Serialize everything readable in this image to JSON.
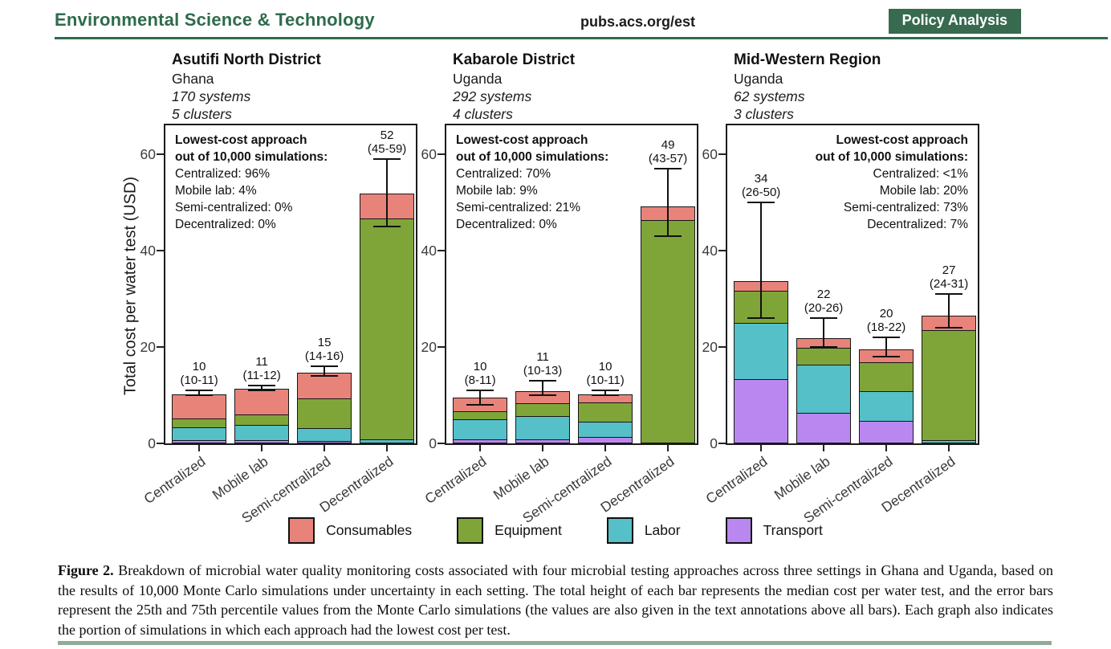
{
  "header": {
    "journal": "Environmental Science & Technology",
    "site": "pubs.acs.org/est",
    "badge": "Policy Analysis"
  },
  "axis": {
    "y_label": "Total cost per water test (USD)",
    "y_ticks": [
      0,
      20,
      40,
      60
    ],
    "y_max": 66
  },
  "legend": [
    {
      "label": "Consumables",
      "color": "#E8837A"
    },
    {
      "label": "Equipment",
      "color": "#7FA539"
    },
    {
      "label": "Labor",
      "color": "#55C0C8"
    },
    {
      "label": "Transport",
      "color": "#BA87F0"
    }
  ],
  "chart_data": [
    {
      "type": "bar",
      "title": "Asutifi North District",
      "subtitle": "Ghana",
      "systems": "170 systems",
      "clusters": "5 clusters",
      "annotation": {
        "heading_1": "Lowest-cost approach",
        "heading_2": "out of 10,000 simulations:",
        "lines": [
          "Centralized: 96%",
          "Mobile lab: 4%",
          "Semi-centralized: 0%",
          "Decentralized: 0%"
        ],
        "align": "left"
      },
      "categories": [
        "Centralized",
        "Mobile lab",
        "Semi-centralized",
        "Decentralized"
      ],
      "series": [
        {
          "name": "Transport",
          "color": "#BA87F0",
          "values": [
            0.7,
            0.8,
            0.6,
            0
          ]
        },
        {
          "name": "Labor",
          "color": "#55C0C8",
          "values": [
            2.7,
            3.2,
            2.7,
            1.0
          ]
        },
        {
          "name": "Equipment",
          "color": "#7FA539",
          "values": [
            1.9,
            2.1,
            6.1,
            45.8
          ]
        },
        {
          "name": "Consumables",
          "color": "#E8837A",
          "values": [
            4.9,
            5.2,
            5.3,
            5.0
          ]
        }
      ],
      "medians": [
        10,
        11,
        15,
        52
      ],
      "iqr_low": [
        10,
        11,
        14,
        45
      ],
      "iqr_high": [
        11,
        12,
        16,
        59
      ],
      "bar_labels": [
        "10",
        "11",
        "15",
        "52"
      ],
      "iqr_labels": [
        "(10-11)",
        "(11-12)",
        "(14-16)",
        "(45-59)"
      ],
      "ylim": [
        0,
        66
      ]
    },
    {
      "type": "bar",
      "title": "Kabarole District",
      "subtitle": "Uganda",
      "systems": "292 systems",
      "clusters": "4 clusters",
      "annotation": {
        "heading_1": "Lowest-cost approach",
        "heading_2": "out of 10,000 simulations:",
        "lines": [
          "Centralized: 70%",
          "Mobile lab: 9%",
          "Semi-centralized: 21%",
          "Decentralized: 0%"
        ],
        "align": "left"
      },
      "categories": [
        "Centralized",
        "Mobile lab",
        "Semi-centralized",
        "Decentralized"
      ],
      "series": [
        {
          "name": "Transport",
          "color": "#BA87F0",
          "values": [
            0.9,
            1.0,
            1.4,
            0
          ]
        },
        {
          "name": "Labor",
          "color": "#55C0C8",
          "values": [
            4.2,
            4.8,
            3.2,
            0
          ]
        },
        {
          "name": "Equipment",
          "color": "#7FA539",
          "values": [
            1.6,
            2.7,
            4.0,
            46.5
          ]
        },
        {
          "name": "Consumables",
          "color": "#E8837A",
          "values": [
            2.8,
            2.4,
            1.6,
            2.7
          ]
        }
      ],
      "medians": [
        10,
        11,
        10,
        49
      ],
      "iqr_low": [
        8,
        10,
        10,
        43
      ],
      "iqr_high": [
        11,
        13,
        11,
        57
      ],
      "bar_labels": [
        "10",
        "11",
        "10",
        "49"
      ],
      "iqr_labels": [
        "(8-11)",
        "(10-13)",
        "(10-11)",
        "(43-57)"
      ],
      "ylim": [
        0,
        66
      ]
    },
    {
      "type": "bar",
      "title": "Mid-Western Region",
      "subtitle": "Uganda",
      "systems": "62 systems",
      "clusters": "3 clusters",
      "annotation": {
        "heading_1": "Lowest-cost approach",
        "heading_2": "out of 10,000 simulations:",
        "lines": [
          "Centralized: <1%",
          "Mobile lab: 20%",
          "Semi-centralized: 73%",
          "Decentralized: 7%"
        ],
        "align": "right"
      },
      "categories": [
        "Centralized",
        "Mobile lab",
        "Semi-centralized",
        "Decentralized"
      ],
      "series": [
        {
          "name": "Transport",
          "color": "#BA87F0",
          "values": [
            13.5,
            6.4,
            4.8,
            0
          ]
        },
        {
          "name": "Labor",
          "color": "#55C0C8",
          "values": [
            11.6,
            10.0,
            6.2,
            0.8
          ]
        },
        {
          "name": "Equipment",
          "color": "#7FA539",
          "values": [
            6.7,
            3.6,
            5.9,
            22.8
          ]
        },
        {
          "name": "Consumables",
          "color": "#E8837A",
          "values": [
            1.9,
            1.8,
            2.6,
            2.9
          ]
        }
      ],
      "medians": [
        34,
        22,
        20,
        27
      ],
      "iqr_low": [
        26,
        20,
        18,
        24
      ],
      "iqr_high": [
        50,
        26,
        22,
        31
      ],
      "bar_labels": [
        "34",
        "22",
        "20",
        "27"
      ],
      "iqr_labels": [
        "(26-50)",
        "(20-26)",
        "(18-22)",
        "(24-31)"
      ],
      "ylim": [
        0,
        66
      ]
    }
  ],
  "caption": {
    "label": "Figure 2.",
    "text": "Breakdown of microbial water quality monitoring costs associated with four microbial testing approaches across three settings in Ghana and Uganda, based on the results of 10,000 Monte Carlo simulations under uncertainty in each setting. The total height of each bar represents the median cost per water test, and the error bars represent the 25th and 75th percentile values from the Monte Carlo simulations (the values are also given in the text annotations above all bars). Each graph also indicates the portion of simulations in which each approach had the lowest cost per test."
  },
  "colors": {
    "header_green": "#2E6B4C",
    "badge_green": "#386A50",
    "bottom_band": "#8FAC96",
    "bar_border": "#161616"
  }
}
